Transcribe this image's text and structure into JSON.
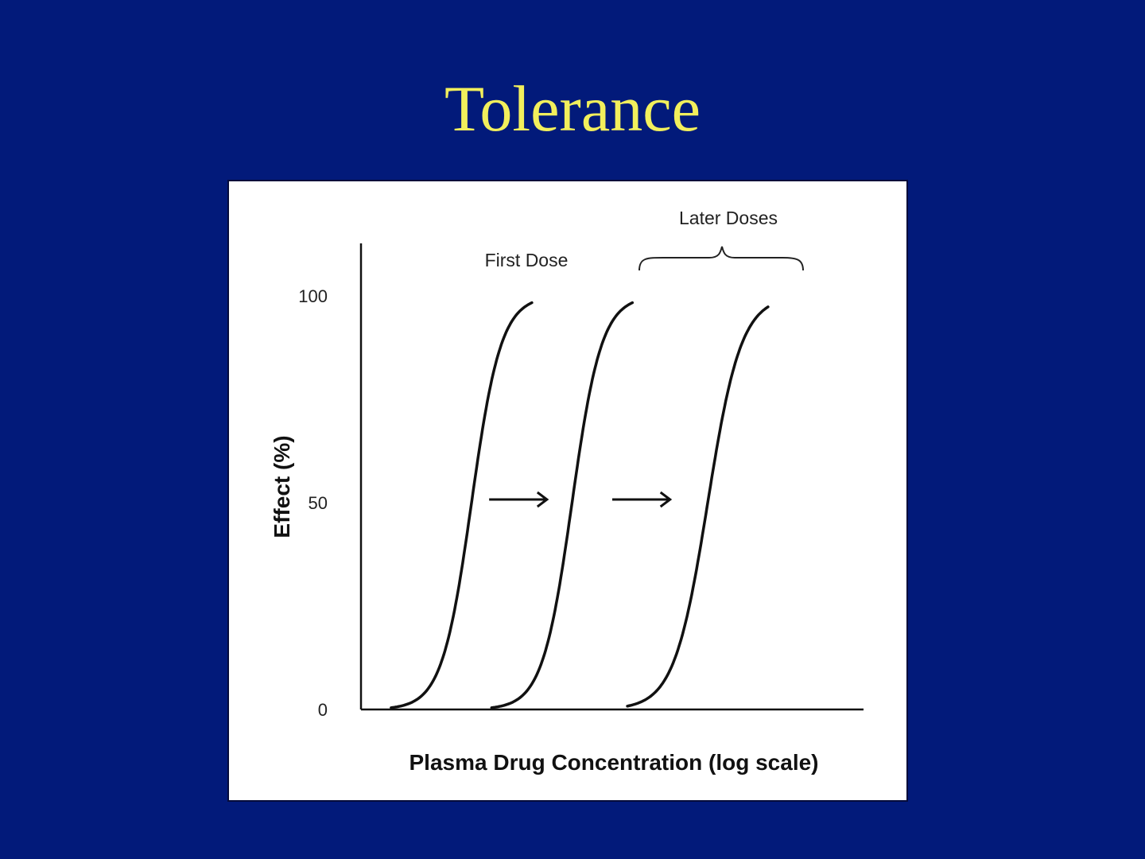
{
  "slide": {
    "title": "Tolerance",
    "background_color": "#021a7a",
    "title_color": "#f2ef5c"
  },
  "chart_data": {
    "type": "line",
    "xlabel": "Plasma Drug Concentration (log scale)",
    "ylabel": "Effect (%)",
    "x_scale": "log",
    "ylim": [
      0,
      100
    ],
    "y_ticks": [
      0,
      50,
      100
    ],
    "grid": false,
    "legend": "none",
    "line_color": "#111111",
    "annotations": {
      "first_dose": "First Dose",
      "later_doses": "Later Doses"
    },
    "curves": [
      {
        "center": 0.22,
        "steepness": 34
      },
      {
        "center": 0.42,
        "steepness": 34
      },
      {
        "center": 0.69,
        "steepness": 30
      }
    ],
    "arrows": [
      {
        "from": 0.255,
        "to": 0.37,
        "y": 50
      },
      {
        "from": 0.5,
        "to": 0.615,
        "y": 50
      }
    ]
  }
}
